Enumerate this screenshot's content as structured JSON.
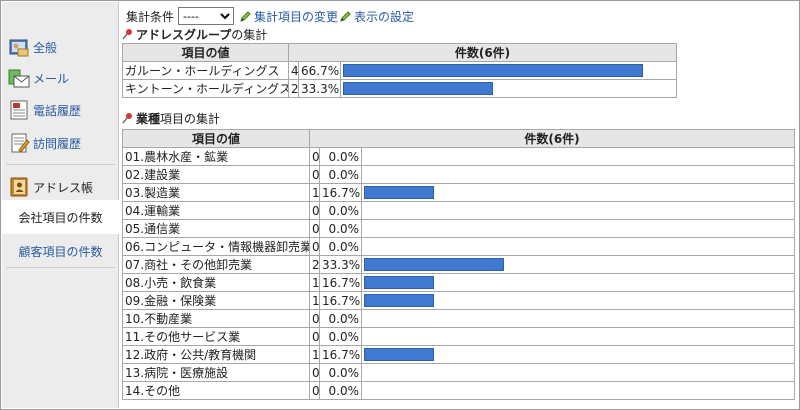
{
  "sidebar": {
    "items": [
      {
        "label": "全般"
      },
      {
        "label": "メール"
      },
      {
        "label": "電話履歴"
      },
      {
        "label": "訪問履歴"
      },
      {
        "label": "アドレス帳"
      }
    ],
    "subitems": [
      {
        "label": "会社項目の件数",
        "active": true
      },
      {
        "label": "顧客項目の件数",
        "active": false
      }
    ]
  },
  "toolbar": {
    "condition_label": "集計条件",
    "condition_value": "----",
    "change_link": "集計項目の変更",
    "settings_link": "表示の設定"
  },
  "section1": {
    "title_bold": "アドレスグループ",
    "title_rest": " の集計",
    "col_value": "項目の値",
    "col_count": "件数(6件)",
    "rows": [
      {
        "name": "ガルーン・ホールディングス",
        "count": "4",
        "pct": "66.7%",
        "ratio": 0.667
      },
      {
        "name": "キントーン・ホールディングス",
        "count": "2",
        "pct": "33.3%",
        "ratio": 0.333
      }
    ]
  },
  "section2": {
    "title_bold": "業種",
    "title_rest": " 項目の集計",
    "col_value": "項目の値",
    "col_count": "件数(6件)",
    "rows": [
      {
        "name": "01.農林水産・鉱業",
        "count": "0",
        "pct": "0.0%",
        "ratio": 0
      },
      {
        "name": "02.建設業",
        "count": "0",
        "pct": "0.0%",
        "ratio": 0
      },
      {
        "name": "03.製造業",
        "count": "1",
        "pct": "16.7%",
        "ratio": 0.167
      },
      {
        "name": "04.運輸業",
        "count": "0",
        "pct": "0.0%",
        "ratio": 0
      },
      {
        "name": "05.通信業",
        "count": "0",
        "pct": "0.0%",
        "ratio": 0
      },
      {
        "name": "06.コンピュータ・情報機器卸売業",
        "count": "0",
        "pct": "0.0%",
        "ratio": 0
      },
      {
        "name": "07.商社・その他卸売業",
        "count": "2",
        "pct": "33.3%",
        "ratio": 0.333
      },
      {
        "name": "08.小売・飲食業",
        "count": "1",
        "pct": "16.7%",
        "ratio": 0.167
      },
      {
        "name": "09.金融・保険業",
        "count": "1",
        "pct": "16.7%",
        "ratio": 0.167
      },
      {
        "name": "10.不動産業",
        "count": "0",
        "pct": "0.0%",
        "ratio": 0
      },
      {
        "name": "11.その他サービス業",
        "count": "0",
        "pct": "0.0%",
        "ratio": 0
      },
      {
        "name": "12.政府・公共/教育機関",
        "count": "1",
        "pct": "16.7%",
        "ratio": 0.167
      },
      {
        "name": "13.病院・医療施設",
        "count": "0",
        "pct": "0.0%",
        "ratio": 0
      },
      {
        "name": "14.その他",
        "count": "0",
        "pct": "0.0%",
        "ratio": 0
      }
    ]
  },
  "colors": {
    "bar": "#3f7ad0",
    "link": "#2a5aa0",
    "header_bg": "#e6e6e6",
    "sidebar_bg": "#ececec"
  },
  "icons": [
    "general-icon",
    "mail-icon",
    "phone-history-icon",
    "visit-history-icon",
    "address-book-icon",
    "pencil-icon",
    "pin-icon"
  ]
}
